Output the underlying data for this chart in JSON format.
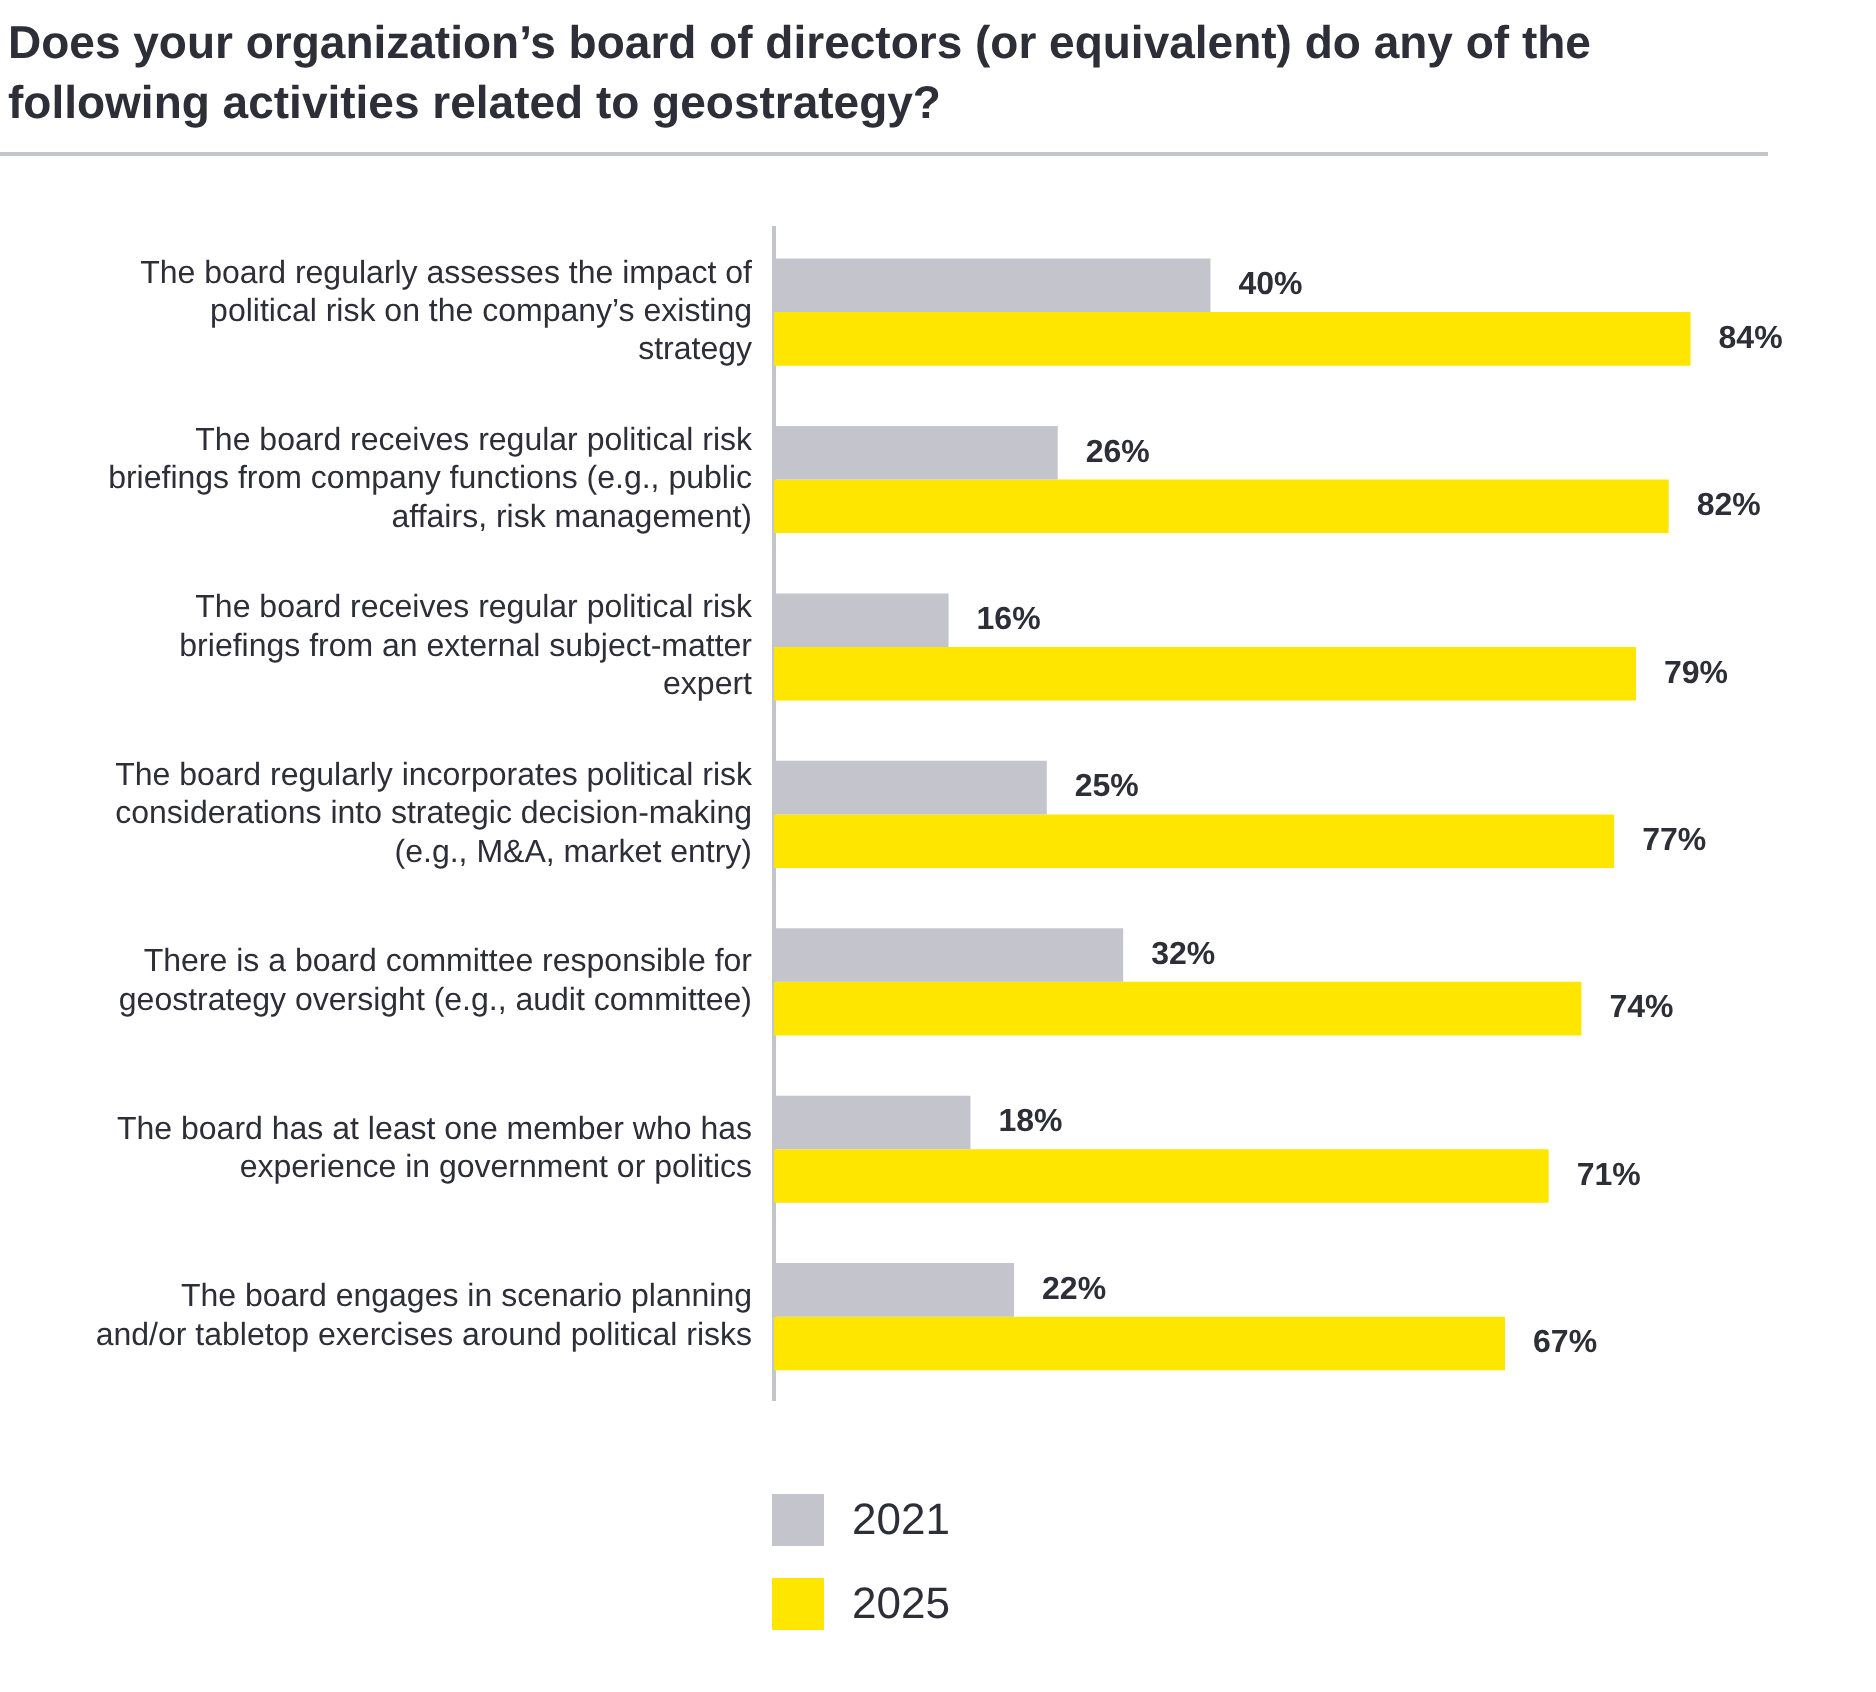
{
  "chart_data": {
    "type": "bar",
    "orientation": "horizontal",
    "title": "Does your organization’s board of directors (or equivalent) do any of the following activities related to geostrategy?",
    "categories": [
      "The board regularly assesses the impact of political risk on the company’s existing strategy",
      "The board receives regular political risk briefings from company functions (e.g., public affairs, risk management)",
      "The board receives regular political risk briefings from an external subject-matter expert",
      "The board regularly incorporates political risk considerations into strategic decision-making (e.g., M&A, market entry)",
      "There is a board committee responsible for geostrategy oversight (e.g., audit committee)",
      "The board has at least one member who has experience in government or politics",
      "The board engages in scenario planning and/or tabletop exercises around political risks"
    ],
    "series": [
      {
        "name": "2021",
        "color": "#c4c4cd",
        "values": [
          40,
          26,
          16,
          25,
          32,
          18,
          22
        ],
        "value_labels": [
          "40%",
          "26%",
          "16%",
          "25%",
          "32%",
          "18%",
          "22%"
        ]
      },
      {
        "name": "2025",
        "color": "#ffe600",
        "values": [
          84,
          82,
          79,
          77,
          74,
          71,
          67
        ],
        "value_labels": [
          "84%",
          "82%",
          "79%",
          "77%",
          "74%",
          "71%",
          "67%"
        ]
      }
    ],
    "legend": "bottom",
    "tick_labels": "y"
  }
}
